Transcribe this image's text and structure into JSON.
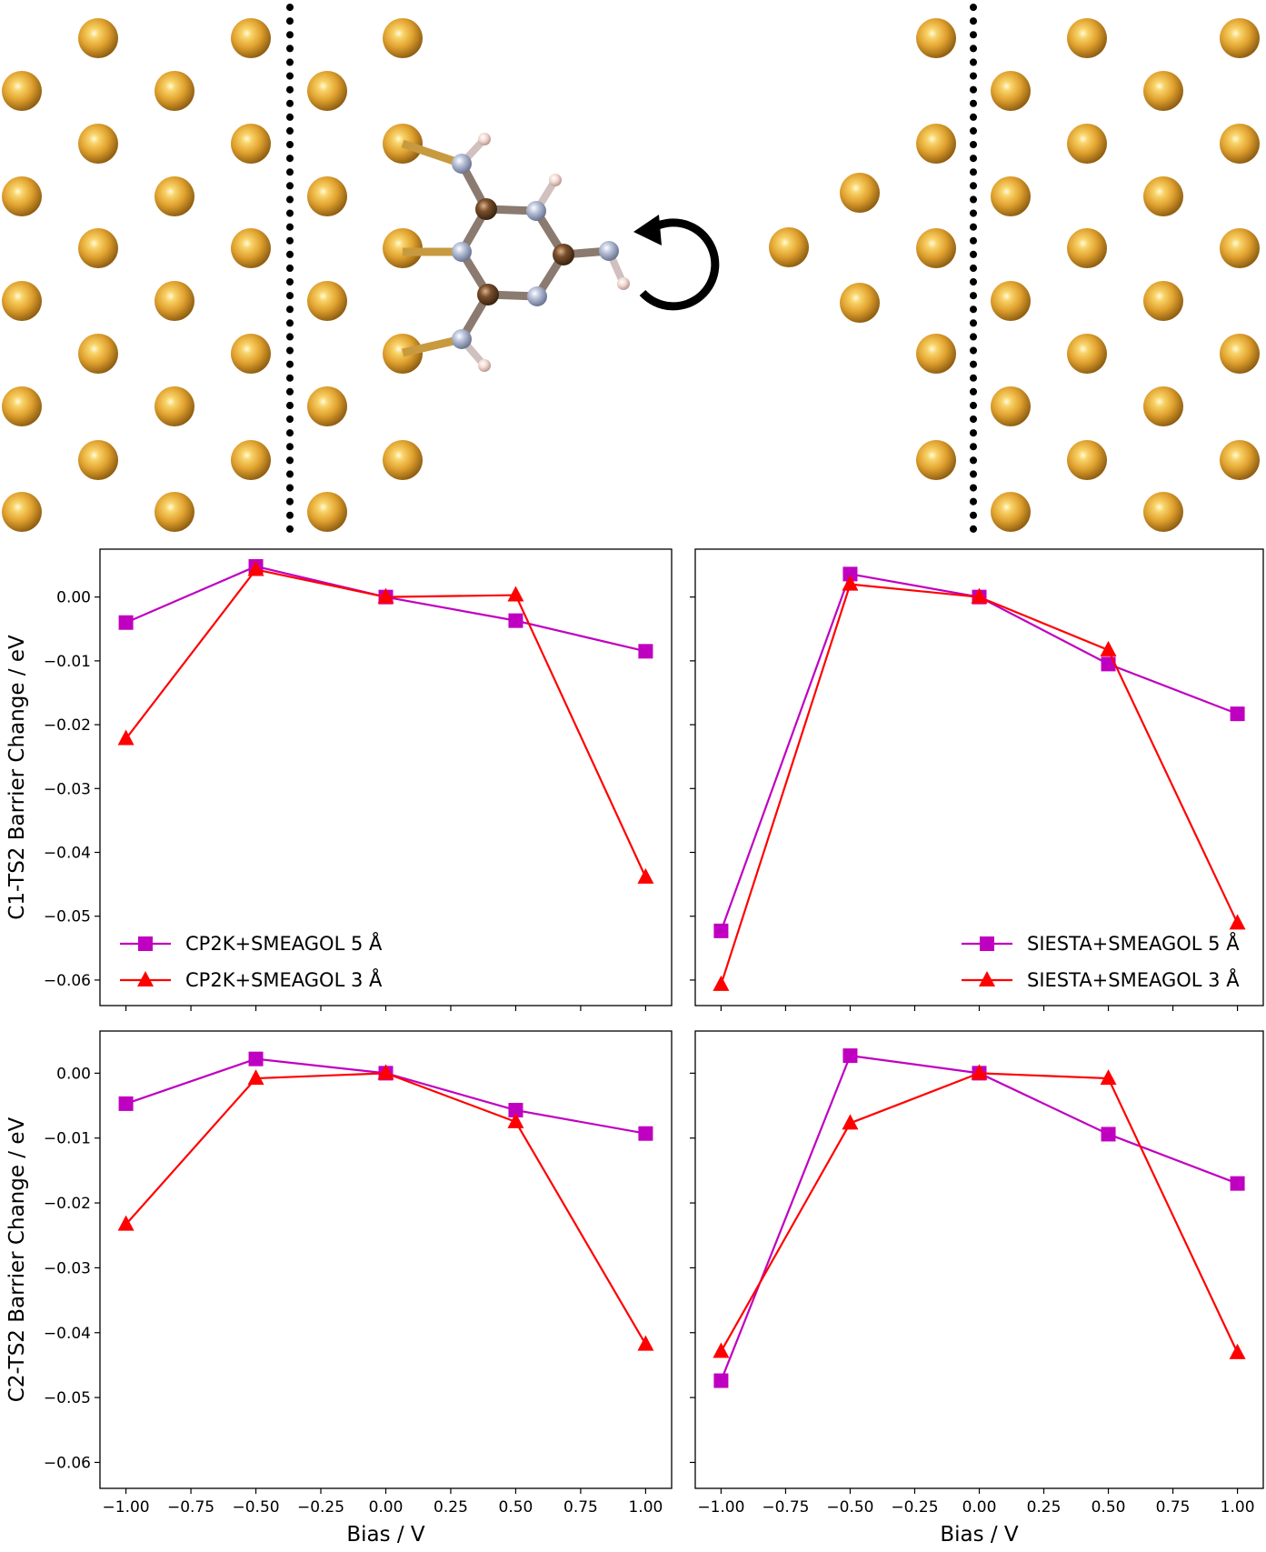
{
  "figure": {
    "y_labels": [
      "C1-TS2 Barrier Change / eV",
      "C2-TS2 Barrier Change / eV"
    ],
    "x_label": "Bias / V"
  },
  "colors": {
    "gold": "#e0a12e",
    "nitrogen": "#a9b3cc",
    "carbon": "#7a4f2c",
    "hydrogen": "#f2d8d0",
    "square_series": "#c000c0",
    "triangle_series": "#ff0000"
  },
  "illustration": {
    "description_icons": [
      "gold-atom-icon",
      "nitrogen-atom-icon",
      "carbon-atom-icon",
      "hydrogen-atom-icon",
      "rotation-arrow-icon"
    ]
  },
  "chart_data": [
    {
      "type": "line",
      "x": [
        -1.0,
        -0.5,
        0.0,
        0.5,
        1.0
      ],
      "ylabel": "C1-TS2 Barrier Change / eV",
      "xlabel": "",
      "ylim": [
        -0.064,
        0.0075
      ],
      "xlim": [
        -1.1,
        1.1
      ],
      "legend": "lower-left",
      "series": [
        {
          "name": "CP2K+SMEAGOL 5 Å",
          "marker": "square",
          "values": [
            -0.004,
            0.0048,
            0.0,
            -0.0037,
            -0.0085
          ]
        },
        {
          "name": "CP2K+SMEAGOL 3 Å",
          "marker": "triangle",
          "values": [
            -0.0222,
            0.0043,
            0.0,
            0.0003,
            -0.0439
          ]
        }
      ]
    },
    {
      "type": "line",
      "x": [
        -1.0,
        -0.5,
        0.0,
        0.5,
        1.0
      ],
      "ylabel": "",
      "xlabel": "",
      "ylim": [
        -0.064,
        0.0075
      ],
      "xlim": [
        -1.1,
        1.1
      ],
      "legend": "lower-right",
      "series": [
        {
          "name": "SIESTA+SMEAGOL 5 Å",
          "marker": "square",
          "values": [
            -0.0523,
            0.0036,
            0.0,
            -0.0105,
            -0.0183
          ]
        },
        {
          "name": "SIESTA+SMEAGOL 3 Å",
          "marker": "triangle",
          "values": [
            -0.0607,
            0.002,
            0.0,
            -0.0083,
            -0.0511
          ]
        }
      ]
    },
    {
      "type": "line",
      "x": [
        -1.0,
        -0.5,
        0.0,
        0.5,
        1.0
      ],
      "ylabel": "C2-TS2 Barrier Change / eV",
      "xlabel": "Bias / V",
      "ylim": [
        -0.064,
        0.0065
      ],
      "xlim": [
        -1.1,
        1.1
      ],
      "legend": "",
      "series": [
        {
          "name": "",
          "marker": "square",
          "values": [
            -0.0047,
            0.0022,
            0.0,
            -0.0057,
            -0.0093
          ]
        },
        {
          "name": "",
          "marker": "triangle",
          "values": [
            -0.0233,
            -0.0008,
            0.0,
            -0.0075,
            -0.0418
          ]
        }
      ]
    },
    {
      "type": "line",
      "x": [
        -1.0,
        -0.5,
        0.0,
        0.5,
        1.0
      ],
      "ylabel": "",
      "xlabel": "Bias / V",
      "ylim": [
        -0.064,
        0.0065
      ],
      "xlim": [
        -1.1,
        1.1
      ],
      "legend": "",
      "series": [
        {
          "name": "",
          "marker": "square",
          "values": [
            -0.0474,
            0.0027,
            0.0,
            -0.0094,
            -0.017
          ]
        },
        {
          "name": "",
          "marker": "triangle",
          "values": [
            -0.0429,
            -0.0077,
            0.0,
            -0.0008,
            -0.0431
          ]
        }
      ]
    }
  ],
  "ticks": {
    "x": [
      "−1.00",
      "−0.75",
      "−0.50",
      "−0.25",
      "0.00",
      "0.25",
      "0.50",
      "0.75",
      "1.00"
    ],
    "x_values": [
      -1.0,
      -0.75,
      -0.5,
      -0.25,
      0.0,
      0.25,
      0.5,
      0.75,
      1.0
    ],
    "y": [
      "0.00",
      "−0.01",
      "−0.02",
      "−0.03",
      "−0.04",
      "−0.05",
      "−0.06"
    ],
    "y_values": [
      0.0,
      -0.01,
      -0.02,
      -0.03,
      -0.04,
      -0.05,
      -0.06
    ]
  }
}
